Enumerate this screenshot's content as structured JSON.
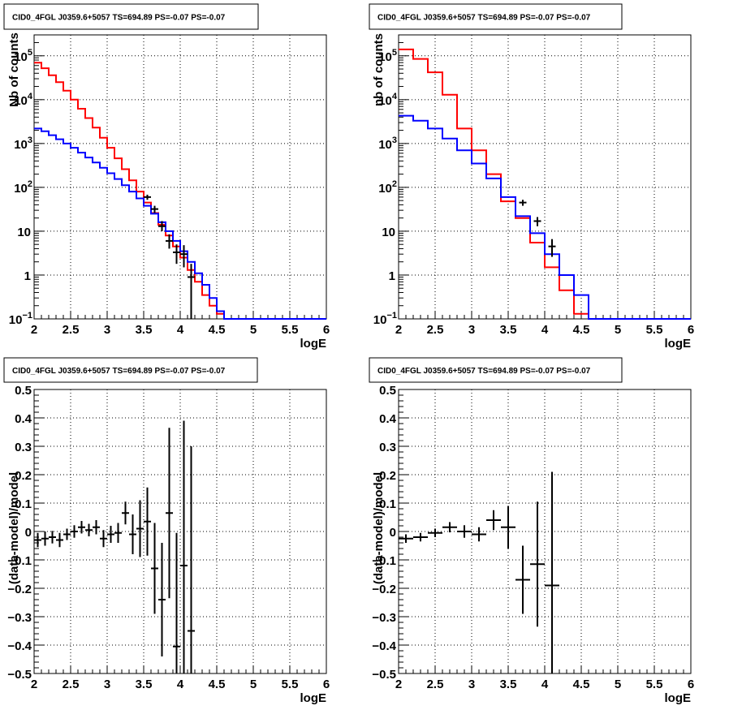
{
  "chart_data": [
    {
      "type": "line",
      "title": "CID0_4FGL J0359.6+5057 TS=694.89 PS=-0.07 PS=-0.07",
      "xlabel": "logE",
      "ylabel": "Nb of counts",
      "xlim": [
        2,
        6
      ],
      "ylim": [
        0.1,
        300000
      ],
      "yscale": "log",
      "grid": true,
      "x_ticks": [
        "2",
        "2.5",
        "3",
        "3.5",
        "4",
        "4.5",
        "5",
        "5.5",
        "6"
      ],
      "y_ticks": [
        {
          "v": 0.1,
          "label": "10",
          "exp": "−1"
        },
        {
          "v": 1,
          "label": "1",
          "exp": ""
        },
        {
          "v": 10,
          "label": "10",
          "exp": ""
        },
        {
          "v": 100,
          "label": "10",
          "exp": "2"
        },
        {
          "v": 1000,
          "label": "10",
          "exp": "3"
        },
        {
          "v": 10000,
          "label": "10",
          "exp": "4"
        },
        {
          "v": 100000,
          "label": "10",
          "exp": "5"
        }
      ],
      "bin_edges": [
        2.0,
        2.1,
        2.2,
        2.3,
        2.4,
        2.5,
        2.6,
        2.7,
        2.8,
        2.9,
        3.0,
        3.1,
        3.2,
        3.3,
        3.4,
        3.5,
        3.6,
        3.7,
        3.8,
        3.9,
        4.0,
        4.1,
        4.2,
        4.3,
        4.4,
        4.5,
        4.6,
        4.7,
        4.8,
        4.9,
        5.0,
        5.1,
        5.2,
        5.3,
        5.4,
        5.5,
        5.6,
        5.7,
        5.8,
        5.9,
        6.0
      ],
      "series": [
        {
          "color": "#ff0000",
          "values": [
            70000,
            52000,
            36000,
            25000,
            16000,
            10000,
            6200,
            3800,
            2300,
            1350,
            800,
            460,
            260,
            145,
            80,
            45,
            26,
            14,
            8,
            4.5,
            2.5,
            1.3,
            0.7,
            0.35,
            0.2,
            0.13,
            0.1,
            0.1,
            0.1,
            0.1,
            0.1,
            0.1,
            0.1,
            0.1,
            0.1,
            0.1,
            0.1,
            0.1,
            0.1,
            0.1
          ]
        },
        {
          "color": "#0000ff",
          "values": [
            2200,
            1900,
            1550,
            1250,
            1000,
            800,
            620,
            480,
            370,
            280,
            210,
            155,
            112,
            80,
            56,
            38,
            25,
            16,
            10,
            6,
            3.5,
            2,
            1.1,
            0.6,
            0.3,
            0.15,
            0.1,
            0.1,
            0.1,
            0.1,
            0.1,
            0.1,
            0.1,
            0.1,
            0.1,
            0.1,
            0.1,
            0.1,
            0.1,
            0.1
          ]
        }
      ],
      "data_points": [
        {
          "x": 3.55,
          "y": 60,
          "ylo": 52,
          "yhi": 68
        },
        {
          "x": 3.65,
          "y": 32,
          "ylo": 26,
          "yhi": 38
        },
        {
          "x": 3.75,
          "y": 13,
          "ylo": 10,
          "yhi": 17
        },
        {
          "x": 3.85,
          "y": 6,
          "ylo": 4,
          "yhi": 8.5
        },
        {
          "x": 3.95,
          "y": 3.3,
          "ylo": 1.8,
          "yhi": 5
        },
        {
          "x": 4.05,
          "y": 3,
          "ylo": 1.5,
          "yhi": 4.8
        },
        {
          "x": 4.15,
          "y": 0.9,
          "ylo": 0.1,
          "yhi": 1.8
        }
      ]
    },
    {
      "type": "line",
      "title": "CID0_4FGL J0359.6+5057 TS=694.89 PS=-0.07 PS=-0.07",
      "xlabel": "logE",
      "ylabel": "nb of counts",
      "xlim": [
        2,
        6
      ],
      "ylim": [
        0.1,
        300000
      ],
      "yscale": "log",
      "grid": true,
      "x_ticks": [
        "2",
        "2.5",
        "3",
        "3.5",
        "4",
        "4.5",
        "5",
        "5.5",
        "6"
      ],
      "y_ticks": [
        {
          "v": 0.1,
          "label": "10",
          "exp": "−1"
        },
        {
          "v": 1,
          "label": "1",
          "exp": ""
        },
        {
          "v": 10,
          "label": "10",
          "exp": ""
        },
        {
          "v": 100,
          "label": "10",
          "exp": "2"
        },
        {
          "v": 1000,
          "label": "10",
          "exp": "3"
        },
        {
          "v": 10000,
          "label": "10",
          "exp": "4"
        },
        {
          "v": 100000,
          "label": "10",
          "exp": "5"
        }
      ],
      "bin_edges": [
        2.0,
        2.2,
        2.4,
        2.6,
        2.8,
        3.0,
        3.2,
        3.4,
        3.6,
        3.8,
        4.0,
        4.2,
        4.4,
        4.6,
        4.8,
        5.0,
        5.2,
        5.4,
        5.6,
        5.8,
        6.0
      ],
      "series": [
        {
          "color": "#ff0000",
          "values": [
            140000,
            85000,
            42000,
            13000,
            2200,
            700,
            200,
            48,
            20,
            5.5,
            1.5,
            0.45,
            0.13,
            0.1,
            0.1,
            0.1,
            0.1,
            0.1,
            0.1,
            0.1
          ]
        },
        {
          "color": "#0000ff",
          "values": [
            4300,
            3300,
            2200,
            1300,
            700,
            350,
            160,
            60,
            22,
            9,
            3,
            1,
            0.35,
            0.1,
            0.1,
            0.1,
            0.1,
            0.1,
            0.1,
            0.1
          ]
        }
      ],
      "data_points": [
        {
          "x": 3.7,
          "y": 45,
          "ylo": 38,
          "yhi": 52
        },
        {
          "x": 3.9,
          "y": 17,
          "ylo": 13,
          "yhi": 21
        },
        {
          "x": 4.1,
          "y": 4.5,
          "ylo": 2.6,
          "yhi": 6.6
        }
      ]
    },
    {
      "type": "scatter",
      "title": "CID0_4FGL J0359.6+5057 TS=694.89 PS=-0.07 PS=-0.07",
      "xlabel": "logE",
      "ylabel": "(data-model)/model",
      "xlim": [
        2,
        6
      ],
      "ylim": [
        -0.5,
        0.5
      ],
      "grid": true,
      "x_ticks": [
        "2",
        "2.5",
        "3",
        "3.5",
        "4",
        "4.5",
        "5",
        "5.5",
        "6"
      ],
      "y_ticks": [
        "−0.5",
        "−0.4",
        "−0.3",
        "−0.2",
        "−0.1",
        "0",
        "0.1",
        "0.2",
        "0.3",
        "0.4",
        "0.5"
      ],
      "points": [
        {
          "x": 2.05,
          "y": -0.03,
          "ex": 0.05,
          "ey": 0.025
        },
        {
          "x": 2.15,
          "y": -0.025,
          "ex": 0.05,
          "ey": 0.025
        },
        {
          "x": 2.25,
          "y": -0.02,
          "ex": 0.05,
          "ey": 0.022
        },
        {
          "x": 2.35,
          "y": -0.03,
          "ex": 0.05,
          "ey": 0.025
        },
        {
          "x": 2.45,
          "y": -0.01,
          "ex": 0.05,
          "ey": 0.02
        },
        {
          "x": 2.55,
          "y": 0.0,
          "ex": 0.05,
          "ey": 0.022
        },
        {
          "x": 2.65,
          "y": 0.015,
          "ex": 0.05,
          "ey": 0.022
        },
        {
          "x": 2.75,
          "y": 0.005,
          "ex": 0.05,
          "ey": 0.022
        },
        {
          "x": 2.85,
          "y": 0.015,
          "ex": 0.05,
          "ey": 0.025
        },
        {
          "x": 2.95,
          "y": -0.025,
          "ex": 0.05,
          "ey": 0.03
        },
        {
          "x": 3.05,
          "y": -0.01,
          "ex": 0.05,
          "ey": 0.03
        },
        {
          "x": 3.15,
          "y": -0.005,
          "ex": 0.05,
          "ey": 0.035
        },
        {
          "x": 3.25,
          "y": 0.065,
          "ex": 0.05,
          "ey": 0.04
        },
        {
          "x": 3.35,
          "y": -0.01,
          "ex": 0.05,
          "ey": 0.07
        },
        {
          "x": 3.45,
          "y": 0.01,
          "ex": 0.05,
          "ey": 0.1
        },
        {
          "x": 3.55,
          "y": 0.035,
          "ex": 0.05,
          "ey": 0.12
        },
        {
          "x": 3.65,
          "y": -0.13,
          "ex": 0.05,
          "ey": 0.16
        },
        {
          "x": 3.75,
          "y": -0.24,
          "ex": 0.05,
          "ey": 0.2
        },
        {
          "x": 3.85,
          "y": 0.065,
          "ex": 0.05,
          "ey": 0.3
        },
        {
          "x": 3.95,
          "y": -0.405,
          "ex": 0.05,
          "ey": 0.4
        },
        {
          "x": 4.05,
          "y": -0.12,
          "ex": 0.05,
          "ey": 0.51
        },
        {
          "x": 4.15,
          "y": -0.35,
          "ex": 0.05,
          "ey": 0.65
        }
      ]
    },
    {
      "type": "scatter",
      "title": "CID0_4FGL J0359.6+5057 TS=694.89 PS=-0.07 PS=-0.07",
      "xlabel": "logE",
      "ylabel": "(data-model)/model",
      "xlim": [
        2,
        6
      ],
      "ylim": [
        -0.5,
        0.5
      ],
      "grid": true,
      "x_ticks": [
        "2",
        "2.5",
        "3",
        "3.5",
        "4",
        "4.5",
        "5",
        "5.5",
        "6"
      ],
      "y_ticks": [
        "−0.5",
        "−0.4",
        "−0.3",
        "−0.2",
        "−0.1",
        "0",
        "0.1",
        "0.2",
        "0.3",
        "0.4",
        "0.5"
      ],
      "points": [
        {
          "x": 2.1,
          "y": -0.025,
          "ex": 0.1,
          "ey": 0.015
        },
        {
          "x": 2.3,
          "y": -0.02,
          "ex": 0.1,
          "ey": 0.015
        },
        {
          "x": 2.5,
          "y": -0.005,
          "ex": 0.1,
          "ey": 0.015
        },
        {
          "x": 2.7,
          "y": 0.015,
          "ex": 0.1,
          "ey": 0.018
        },
        {
          "x": 2.9,
          "y": 0.0,
          "ex": 0.1,
          "ey": 0.022
        },
        {
          "x": 3.1,
          "y": -0.01,
          "ex": 0.1,
          "ey": 0.025
        },
        {
          "x": 3.3,
          "y": 0.04,
          "ex": 0.1,
          "ey": 0.035
        },
        {
          "x": 3.5,
          "y": 0.015,
          "ex": 0.1,
          "ey": 0.075
        },
        {
          "x": 3.7,
          "y": -0.17,
          "ex": 0.1,
          "ey": 0.12
        },
        {
          "x": 3.9,
          "y": -0.115,
          "ex": 0.1,
          "ey": 0.22
        },
        {
          "x": 4.1,
          "y": -0.19,
          "ex": 0.1,
          "ey": 0.4
        }
      ]
    }
  ]
}
